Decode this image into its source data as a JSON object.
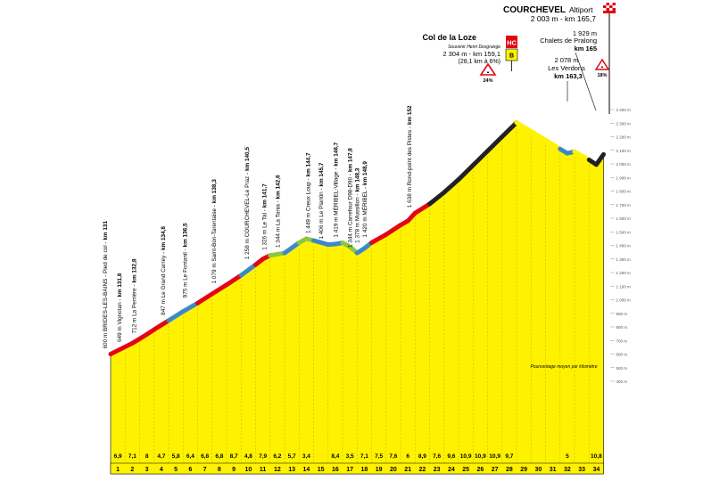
{
  "chart_data": {
    "type": "area",
    "title": "COURCHEVEL",
    "subtitle": "Altiport",
    "finish_info": "2 003 m - km 165,7",
    "ylim": [
      400,
      2400
    ],
    "x_unit": "km",
    "y_ticks": [
      "400 m",
      "500 m",
      "600 m",
      "700 m",
      "800 m",
      "900 m",
      "1 000 m",
      "1 100 m",
      "1 200 m",
      "1 300 m",
      "1 400 m",
      "1 500 m",
      "1 600 m",
      "1 700 m",
      "1 800 m",
      "1 900 m",
      "2 000 m",
      "2 100 m",
      "2 200 m",
      "2 300 m",
      "2 400 m"
    ],
    "distance_labels": [
      "1",
      "2",
      "3",
      "4",
      "5",
      "6",
      "7",
      "8",
      "9",
      "10",
      "11",
      "12",
      "13",
      "14",
      "15",
      "16",
      "17",
      "18",
      "19",
      "20",
      "21",
      "22",
      "23",
      "24",
      "25",
      "26",
      "27",
      "28",
      "29",
      "30",
      "31",
      "32",
      "33",
      "34"
    ],
    "profile": {
      "x": [
        0,
        1.5,
        2,
        2.5,
        3,
        4,
        5,
        6,
        7,
        8,
        9,
        10,
        10.5,
        11,
        12,
        13,
        13.5,
        14,
        15,
        15.5,
        16,
        16.5,
        17,
        17.5,
        18,
        19,
        20,
        20.5,
        21,
        22,
        23,
        24,
        25,
        26,
        27,
        28,
        29,
        30,
        31,
        31.5,
        32,
        33,
        33.5,
        34
      ],
      "y": [
        600,
        680,
        712,
        745,
        780,
        847,
        914,
        975,
        1043,
        1110,
        1180,
        1258,
        1300,
        1326,
        1344,
        1420,
        1449,
        1436,
        1406,
        1410,
        1419,
        1390,
        1344,
        1378,
        1420,
        1480,
        1550,
        1580,
        1638,
        1705,
        1790,
        1885,
        1990,
        2095,
        2200,
        2304,
        2240,
        2175,
        2110,
        2078,
        2090,
        2030,
        1995,
        2070
      ]
    },
    "gradient_colors": {
      "0-4": "#e30613",
      "4-6": "#3b89c9",
      "6-9": "#e30613",
      "9-10": "#3b89c9",
      "10-11": "#e30613",
      "11-12": "#8dc63f",
      "12-13": "#3b89c9",
      "13-14": "#8dc63f",
      "14-16": "#3b89c9",
      "16-17": "#8dc63f",
      "17-18": "#3b89c9",
      "18-22": "#e30613",
      "22-28": "#222222",
      "28-31": "#fff200",
      "31-32": "#3b89c9",
      "32-33": "#fff200",
      "33-34": "#222222"
    },
    "gradients": [
      "6,9",
      "7,1",
      "8",
      "4,7",
      "5,8",
      "6,4",
      "6,8",
      "6,8",
      "8,7",
      "4,8",
      "7,9",
      "6,2",
      "5,7",
      "3,4",
      "",
      "8,4",
      "3,5",
      "7,1",
      "7,5",
      "7,6",
      "6",
      "8,9",
      "7,6",
      "9,6",
      "10,9",
      "10,9",
      "10,9",
      "9,7",
      "",
      "",
      "",
      "5",
      "",
      "10,8"
    ],
    "waypoints": [
      {
        "km": 0,
        "alt": 600,
        "label": "600 m BRIDES-LES-BAINS - Pied de col -",
        "kmlabel": "km 131"
      },
      {
        "km": 1,
        "alt": 649,
        "label": "649 m Vignotan -",
        "kmlabel": "km 131,8"
      },
      {
        "km": 2,
        "alt": 712,
        "label": "712 m La Perrière -",
        "kmlabel": "km 132,8"
      },
      {
        "km": 4,
        "alt": 847,
        "label": "847 m Le Grand Carrey -",
        "kmlabel": "km 134,8"
      },
      {
        "km": 5.5,
        "alt": 975,
        "label": "975 m Le Fontanil -",
        "kmlabel": "km 136,5"
      },
      {
        "km": 7.5,
        "alt": 1079,
        "label": "1 079 m Saint-Bon-Tarentaise -",
        "kmlabel": "km 138,3"
      },
      {
        "km": 9.8,
        "alt": 1258,
        "label": "1 258 m COURCHEVEL-Le Praz -",
        "kmlabel": "km 140,5"
      },
      {
        "km": 11,
        "alt": 1326,
        "label": "1 326 m Le Tal -",
        "kmlabel": "km 141,7"
      },
      {
        "km": 11.9,
        "alt": 1344,
        "label": "1 344 m La Tania -",
        "kmlabel": "km 142,6"
      },
      {
        "km": 14,
        "alt": 1449,
        "label": "1 449 m Creux Loup -",
        "kmlabel": "km 144,7"
      },
      {
        "km": 14.9,
        "alt": 1406,
        "label": "1 406 m Le Plantin -",
        "kmlabel": "km 145,7"
      },
      {
        "km": 15.9,
        "alt": 1419,
        "label": "1 419 m MÉRIBEL-Village -",
        "kmlabel": "km 146,7"
      },
      {
        "km": 16.9,
        "alt": 1344,
        "label": "1 344 m Carrefour D98-D90 -",
        "kmlabel": "km 147,8"
      },
      {
        "km": 17.4,
        "alt": 1378,
        "label": "1 378 m Mussillon -",
        "kmlabel": "km 148,3"
      },
      {
        "km": 17.9,
        "alt": 1420,
        "label": "1 420 m MÉRIBEL -",
        "kmlabel": "km 148,9"
      },
      {
        "km": 21,
        "alt": 1638,
        "label": "1 638 m Rond-point des Pistes -",
        "kmlabel": "km 152"
      }
    ],
    "col": {
      "name": "Col de la Loze",
      "souvenir": "Souvenir Henri Desgrange",
      "info1": "2 304 m - km 159,1",
      "info2": "(28,1 km à 6%)",
      "category": "HC",
      "bonus": "B",
      "max_grade": "24%"
    },
    "verdons": {
      "alt": "2 078 m",
      "name": "Les Verdons",
      "km": "km 163,3"
    },
    "pralong": {
      "alt": "1 929 m",
      "name": "Chalets de Pralong",
      "km": "km 165"
    },
    "final_grade": "18%",
    "avg_note": "Pourcentage moyen par kilomètre"
  }
}
